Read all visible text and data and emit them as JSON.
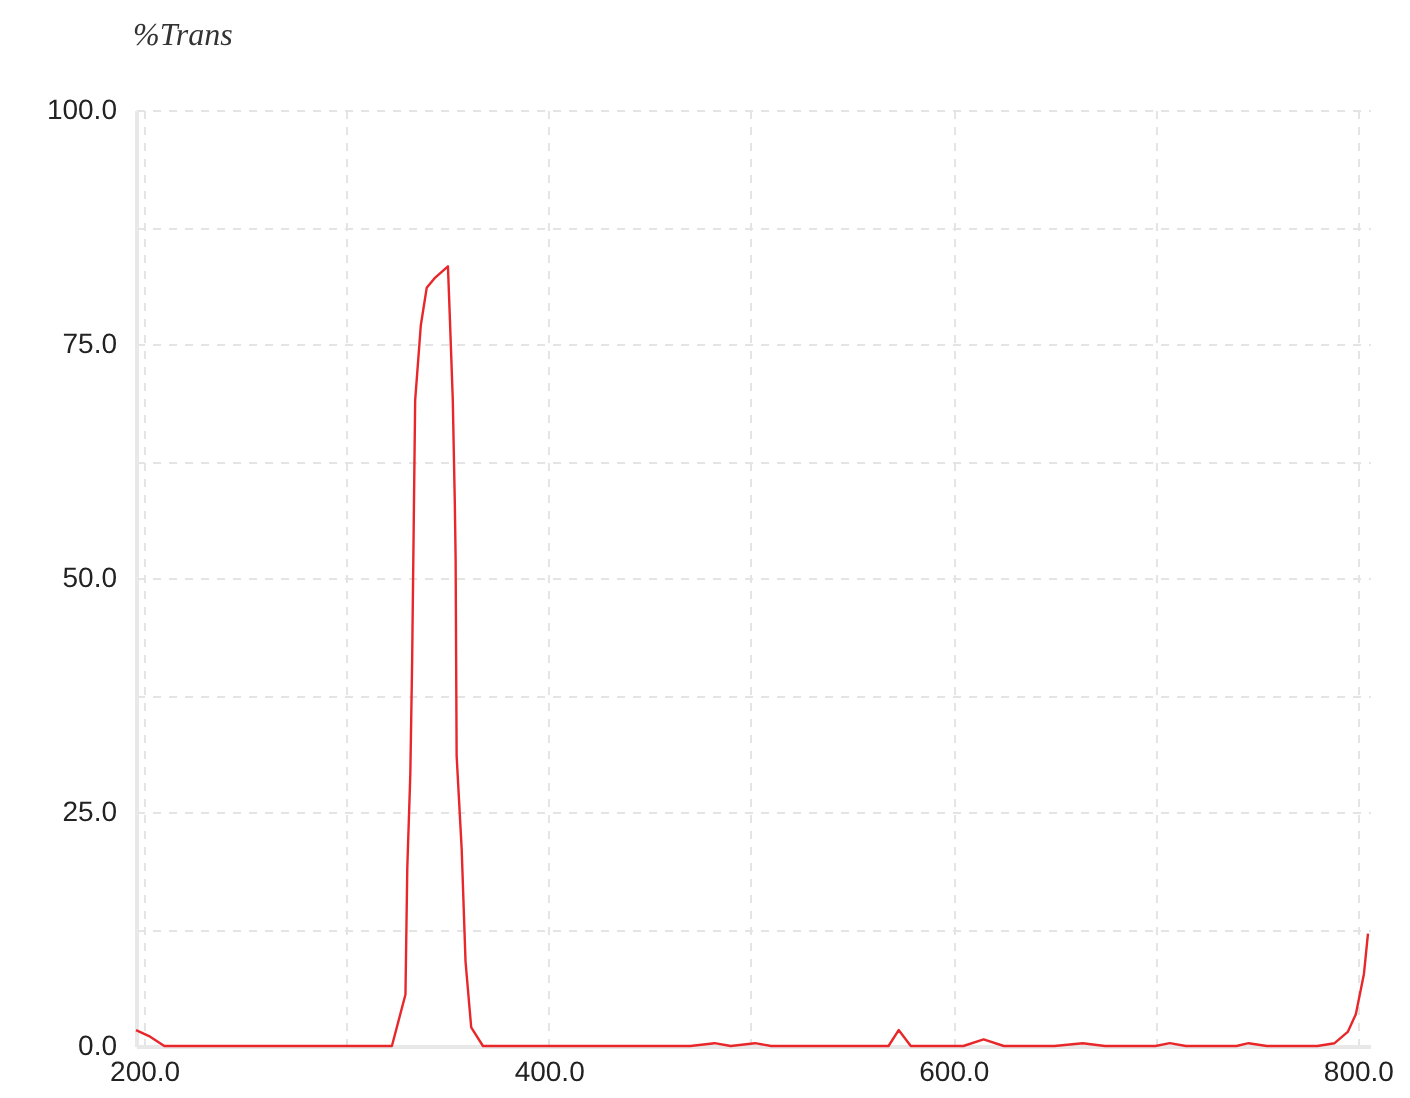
{
  "chart_data": {
    "type": "line",
    "ylabel": "%Trans",
    "x": [
      196,
      203,
      210,
      250,
      300,
      322.5,
      329.2,
      330.1,
      331.6,
      332.5,
      334,
      336.8,
      339.7,
      343.5,
      350.2,
      351.2,
      352.6,
      353.6,
      354,
      354.5,
      357,
      358.9,
      361.7,
      367.5,
      400,
      470,
      482,
      490,
      502,
      510,
      540,
      568,
      573,
      579,
      605,
      615,
      625,
      650,
      664,
      675,
      700,
      707,
      715,
      740,
      746,
      755,
      780,
      788.5,
      795,
      799,
      803,
      805
    ],
    "series": [
      {
        "color": "#e8272a",
        "values": [
          1.7,
          1,
          0,
          0,
          0,
          0,
          5.5,
          19,
          29,
          41,
          69,
          77,
          81,
          82,
          83.3,
          77.5,
          69,
          58,
          52,
          31,
          21,
          9,
          2,
          0,
          0,
          0,
          0.3,
          0,
          0.3,
          0,
          0,
          0,
          1.7,
          0,
          0,
          0.7,
          0,
          0,
          0.3,
          0,
          0,
          0.3,
          0,
          0,
          0.3,
          0,
          0,
          0.3,
          1.5,
          3.4,
          7.7,
          12
        ]
      }
    ],
    "xlim": [
      196,
      806
    ],
    "xticks": [
      {
        "value": 200,
        "label": "200.0"
      },
      {
        "value": 300,
        "label": null
      },
      {
        "value": 400,
        "label": "400.0"
      },
      {
        "value": 500,
        "label": null
      },
      {
        "value": 600,
        "label": "600.0"
      },
      {
        "value": 700,
        "label": null
      },
      {
        "value": 800,
        "label": "800.0"
      }
    ],
    "ylim": [
      0,
      100
    ],
    "yticks": [
      {
        "value": 0,
        "label": "0.0"
      },
      {
        "value": 12.5,
        "label": null
      },
      {
        "value": 25,
        "label": "25.0"
      },
      {
        "value": 37.5,
        "label": null
      },
      {
        "value": 50,
        "label": "50.0"
      },
      {
        "value": 62.5,
        "label": null
      },
      {
        "value": 75,
        "label": "75.0"
      },
      {
        "value": 87.5,
        "label": null
      },
      {
        "value": 100,
        "label": "100.0"
      }
    ],
    "grid": true,
    "marker": "none",
    "line_style": "solid"
  }
}
